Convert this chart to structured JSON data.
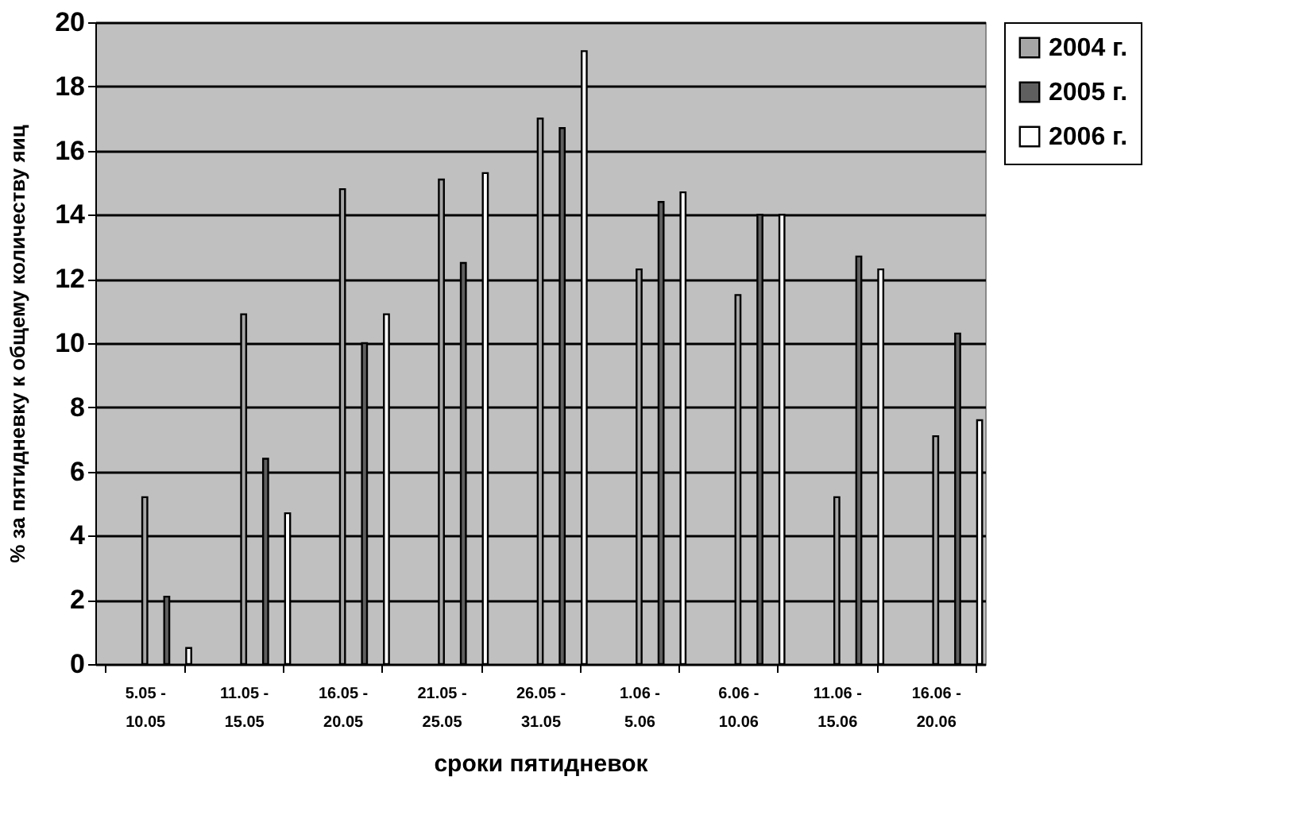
{
  "chart_data": {
    "type": "bar",
    "xlabel": "сроки пятидневок",
    "ylabel": "% за пятидневку к общему количеству яиц",
    "categories": [
      "5.05 - 10.05",
      "11.05 - 15.05",
      "16.05 - 20.05",
      "21.05 - 25.05",
      "26.05 - 31.05",
      "1.06 - 5.06",
      "6.06 - 10.06",
      "11.06 - 15.06",
      "16.06 - 20.06"
    ],
    "series": [
      {
        "name": "2004 г.",
        "color": "#a6a6a6",
        "values": [
          5.2,
          10.9,
          14.8,
          15.1,
          17.0,
          12.3,
          11.5,
          5.2,
          7.1
        ]
      },
      {
        "name": "2005 г.",
        "color": "#5f5f5f",
        "values": [
          2.1,
          6.4,
          10.0,
          12.5,
          16.7,
          14.4,
          14.0,
          12.7,
          10.3
        ]
      },
      {
        "name": "2006 г.",
        "color": "#ffffff",
        "values": [
          0.5,
          4.7,
          10.9,
          15.3,
          19.1,
          14.7,
          14.0,
          12.3,
          7.6
        ]
      }
    ],
    "ylim": [
      0,
      20
    ],
    "yticks": [
      0,
      2,
      4,
      6,
      8,
      10,
      12,
      14,
      16,
      18,
      20
    ],
    "grid": "y",
    "legend": "right"
  }
}
